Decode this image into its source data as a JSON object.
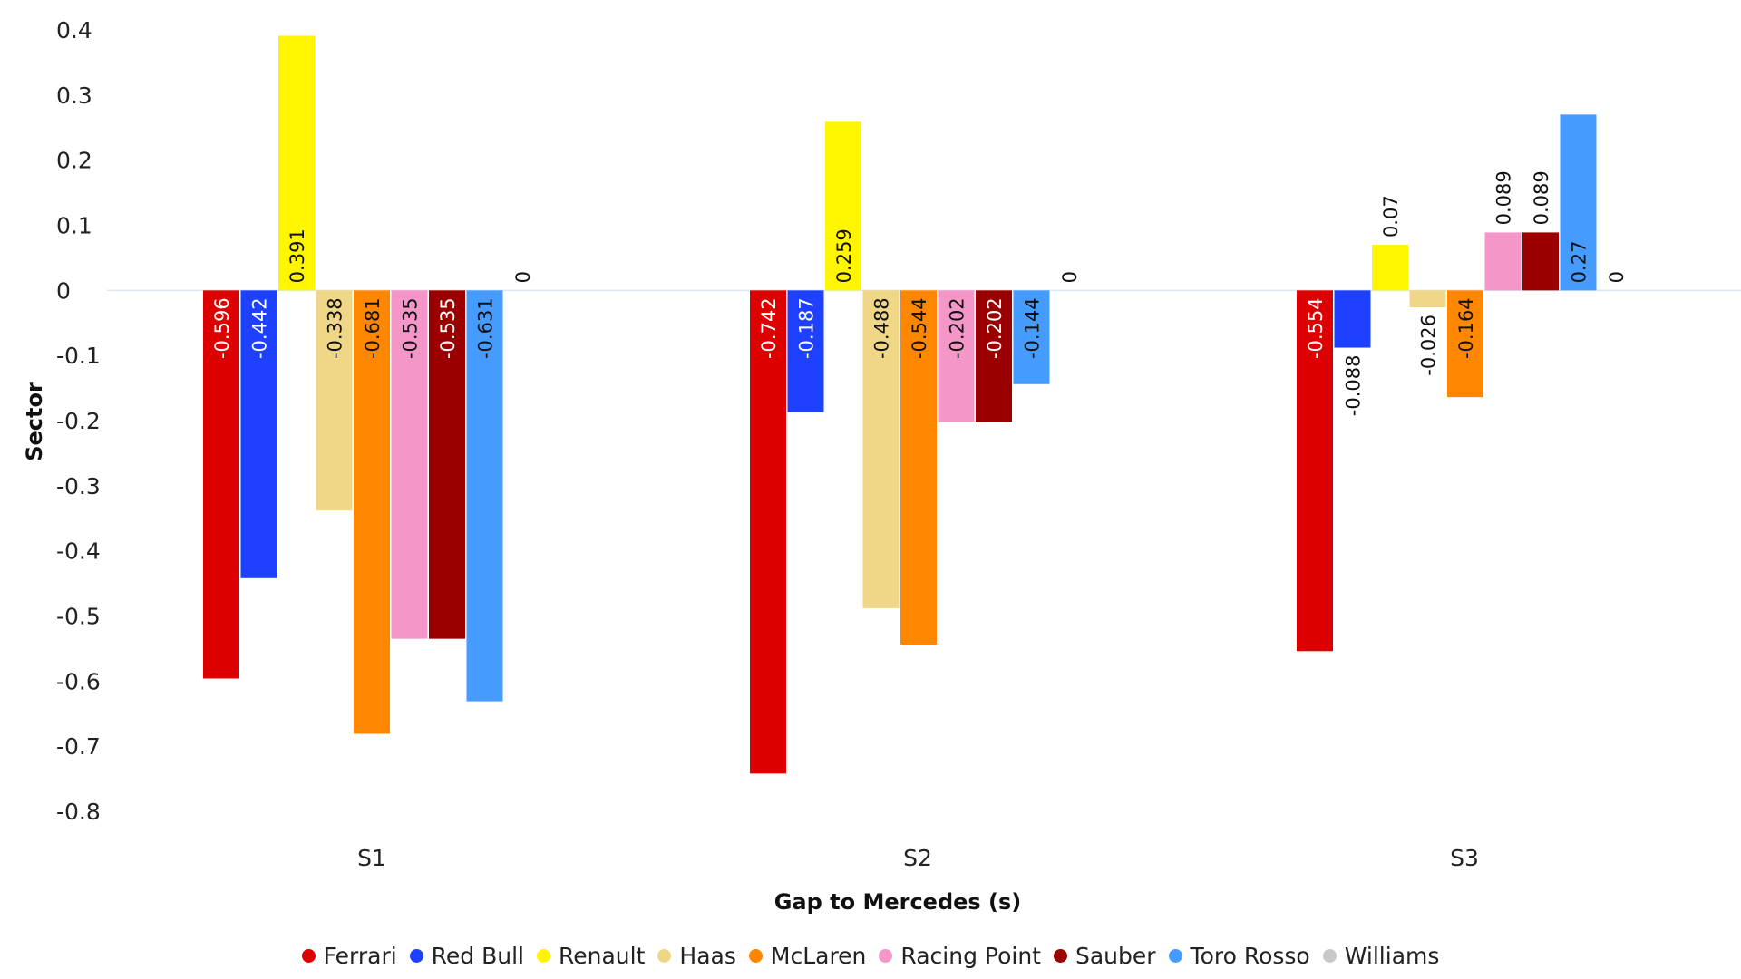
{
  "chart_data": {
    "type": "bar",
    "orientation": "vertical",
    "categories": [
      "S1",
      "S2",
      "S3"
    ],
    "xlabel": "Gap to Mercedes (s)",
    "ylabel": "Sector",
    "ylim": [
      -0.8,
      0.4
    ],
    "yticks": [
      0.4,
      0.3,
      0.2,
      0.1,
      0,
      -0.1,
      -0.2,
      -0.3,
      -0.4,
      -0.5,
      -0.6,
      -0.7,
      -0.8
    ],
    "grid": false,
    "legend_position": "bottom",
    "series": [
      {
        "name": "Ferrari",
        "color": "#dc0000",
        "values": [
          -0.596,
          -0.742,
          -0.554
        ],
        "labels": [
          "-0.596",
          "-0.742",
          "-0.554"
        ],
        "label_color": "#ffffff"
      },
      {
        "name": "Red Bull",
        "color": "#1e41ff",
        "values": [
          -0.442,
          -0.187,
          -0.088
        ],
        "labels": [
          "-0.442",
          "-0.187",
          "-0.088"
        ],
        "label_color": "#ffffff"
      },
      {
        "name": "Renault",
        "color": "#fff500",
        "values": [
          0.391,
          0.259,
          0.07
        ],
        "labels": [
          "0.391",
          "0.259",
          "0.07"
        ],
        "label_color": "#111111"
      },
      {
        "name": "Haas",
        "color": "#f0d787",
        "values": [
          -0.338,
          -0.488,
          -0.026
        ],
        "labels": [
          "-0.338",
          "-0.488",
          "-0.026"
        ],
        "label_color": "#111111"
      },
      {
        "name": "McLaren",
        "color": "#ff8700",
        "values": [
          -0.681,
          -0.544,
          -0.164
        ],
        "labels": [
          "-0.681",
          "-0.544",
          "-0.164"
        ],
        "label_color": "#111111"
      },
      {
        "name": "Racing Point",
        "color": "#f596c8",
        "values": [
          -0.535,
          -0.202,
          0.089
        ],
        "labels": [
          "-0.535",
          "-0.202",
          "0.089"
        ],
        "label_color": "#111111"
      },
      {
        "name": "Sauber",
        "color": "#9b0000",
        "values": [
          -0.535,
          -0.202,
          0.089
        ],
        "labels": [
          "-0.535",
          "-0.202",
          "0.089"
        ],
        "label_color": "#ffffff"
      },
      {
        "name": "Toro Rosso",
        "color": "#469bff",
        "values": [
          -0.631,
          -0.144,
          0.27
        ],
        "labels": [
          "-0.631",
          "-0.144",
          "0.27"
        ],
        "label_color": "#111111"
      },
      {
        "name": "Williams",
        "color": "#c8c8c8",
        "values": [
          0,
          0,
          0
        ],
        "labels": [
          "0",
          "0",
          "0"
        ],
        "label_color": "#111111"
      }
    ]
  }
}
